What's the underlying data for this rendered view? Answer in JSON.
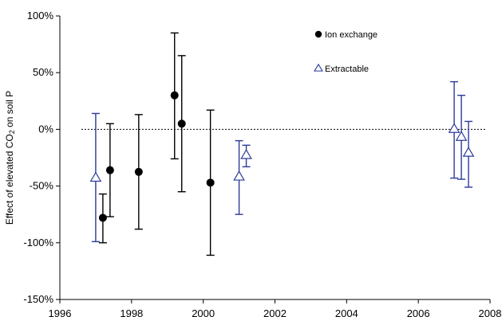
{
  "chart_data": {
    "type": "scatter",
    "title": "",
    "xlabel": "",
    "ylabel": "Effect of elevated CO2 on soil P",
    "ylabel_parts": {
      "before": "Effect of elevated CO",
      "subscript": "2",
      "after": " on soil P"
    },
    "xlim": [
      1996,
      2008
    ],
    "ylim": [
      -1.5,
      1.0
    ],
    "x_ticks": [
      1996,
      1998,
      2000,
      2002,
      2004,
      2006,
      2008
    ],
    "x_tick_labels": [
      "1996",
      "1998",
      "2000",
      "2002",
      "2004",
      "2006",
      "2008"
    ],
    "y_ticks": [
      1.0,
      0.5,
      0.0,
      -0.5,
      -1.0,
      -1.5
    ],
    "y_tick_labels": [
      "100%",
      "50%",
      "0%",
      "-50%",
      "-100%",
      "-150%"
    ],
    "reference_line": {
      "y": 0,
      "style": "dotted"
    },
    "grid": false,
    "legend": {
      "placement": "top-right",
      "entries": [
        {
          "name": "Ion exchange",
          "marker": "filled-circle",
          "color": "#000000"
        },
        {
          "name": "Extractable",
          "marker": "open-triangle",
          "color": "#2b3a9a"
        }
      ]
    },
    "series": [
      {
        "name": "Ion exchange",
        "marker": "filled-circle",
        "color": "#000000",
        "points": [
          {
            "x": 1997.2,
            "y": -0.78,
            "low": -1.0,
            "high": -0.57
          },
          {
            "x": 1997.4,
            "y": -0.36,
            "low": -0.77,
            "high": 0.05
          },
          {
            "x": 1998.2,
            "y": -0.375,
            "low": -0.88,
            "high": 0.13
          },
          {
            "x": 1999.2,
            "y": 0.3,
            "low": -0.26,
            "high": 0.85
          },
          {
            "x": 1999.4,
            "y": 0.05,
            "low": -0.55,
            "high": 0.65
          },
          {
            "x": 2000.2,
            "y": -0.47,
            "low": -1.11,
            "high": 0.17
          }
        ]
      },
      {
        "name": "Extractable",
        "marker": "open-triangle",
        "color": "#2b3a9a",
        "points": [
          {
            "x": 1997.0,
            "y": -0.43,
            "low": -0.99,
            "high": 0.14
          },
          {
            "x": 2001.0,
            "y": -0.42,
            "low": -0.75,
            "high": -0.1
          },
          {
            "x": 2001.2,
            "y": -0.23,
            "low": -0.33,
            "high": -0.14
          },
          {
            "x": 2007.0,
            "y": 0.0,
            "low": -0.43,
            "high": 0.42
          },
          {
            "x": 2007.2,
            "y": -0.07,
            "low": -0.44,
            "high": 0.3
          },
          {
            "x": 2007.4,
            "y": -0.21,
            "low": -0.51,
            "high": 0.07
          }
        ]
      }
    ]
  }
}
